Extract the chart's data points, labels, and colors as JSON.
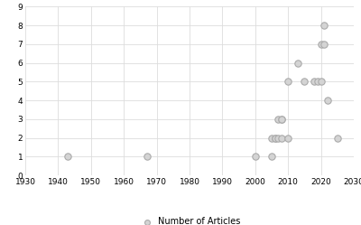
{
  "x": [
    1943,
    1967,
    2000,
    2005,
    2005,
    2006,
    2006,
    2007,
    2007,
    2008,
    2008,
    2008,
    2010,
    2010,
    2013,
    2015,
    2018,
    2019,
    2020,
    2020,
    2021,
    2021,
    2022,
    2025
  ],
  "y": [
    1,
    1,
    1,
    1,
    2,
    2,
    2,
    2,
    3,
    2,
    3,
    3,
    5,
    2,
    6,
    5,
    5,
    5,
    7,
    5,
    7,
    8,
    4,
    2
  ],
  "xlim": [
    1930,
    2030
  ],
  "ylim": [
    0,
    9
  ],
  "xticks": [
    1930,
    1940,
    1950,
    1960,
    1970,
    1980,
    1990,
    2000,
    2010,
    2020,
    2030
  ],
  "yticks": [
    0,
    1,
    2,
    3,
    4,
    5,
    6,
    7,
    8,
    9
  ],
  "legend_label": "Number of Articles",
  "marker_facecolor": "#d4d4d4",
  "marker_edgecolor": "#aaaaaa",
  "marker_size": 28,
  "marker_linewidth": 0.8,
  "background_color": "#ffffff",
  "grid_color": "#dddddd",
  "tick_labelsize": 6.5,
  "legend_fontsize": 7
}
